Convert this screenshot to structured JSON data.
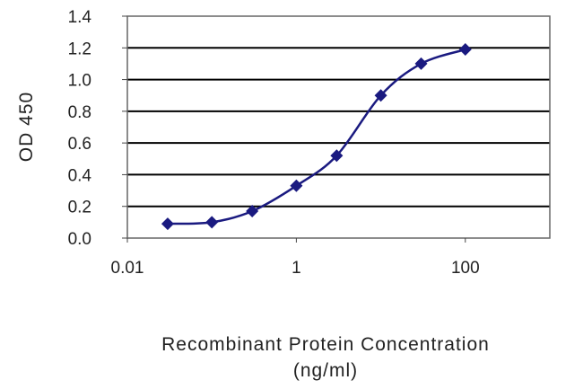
{
  "chart_data": {
    "type": "line",
    "title": "",
    "ylabel": "OD 450",
    "xlabel_line1": "Recombinant Protein Concentration",
    "xlabel_line2": "(ng/ml)",
    "x_scale": "log",
    "xlim": [
      0.01,
      1000
    ],
    "ylim": [
      0,
      1.4
    ],
    "x_ticks": [
      0.01,
      1,
      100
    ],
    "x_tick_labels": [
      "0.01",
      "1",
      "100"
    ],
    "y_ticks": [
      0,
      0.2,
      0.4,
      0.6,
      0.8,
      1.0,
      1.2,
      1.4
    ],
    "y_tick_labels": [
      "0.0",
      "0.2",
      "0.4",
      "0.6",
      "0.8",
      "1.0",
      "1.2",
      "1.4"
    ],
    "grid": "horizontal",
    "series": [
      {
        "x": [
          0.03,
          0.1,
          0.3,
          1,
          3,
          10,
          30,
          100
        ],
        "y": [
          0.09,
          0.1,
          0.17,
          0.33,
          0.52,
          0.9,
          1.1,
          1.19
        ]
      }
    ],
    "colors": {
      "line": "#1a1a80",
      "marker": "#1a1a80",
      "grid": "#000000",
      "frame": "#666666"
    }
  }
}
